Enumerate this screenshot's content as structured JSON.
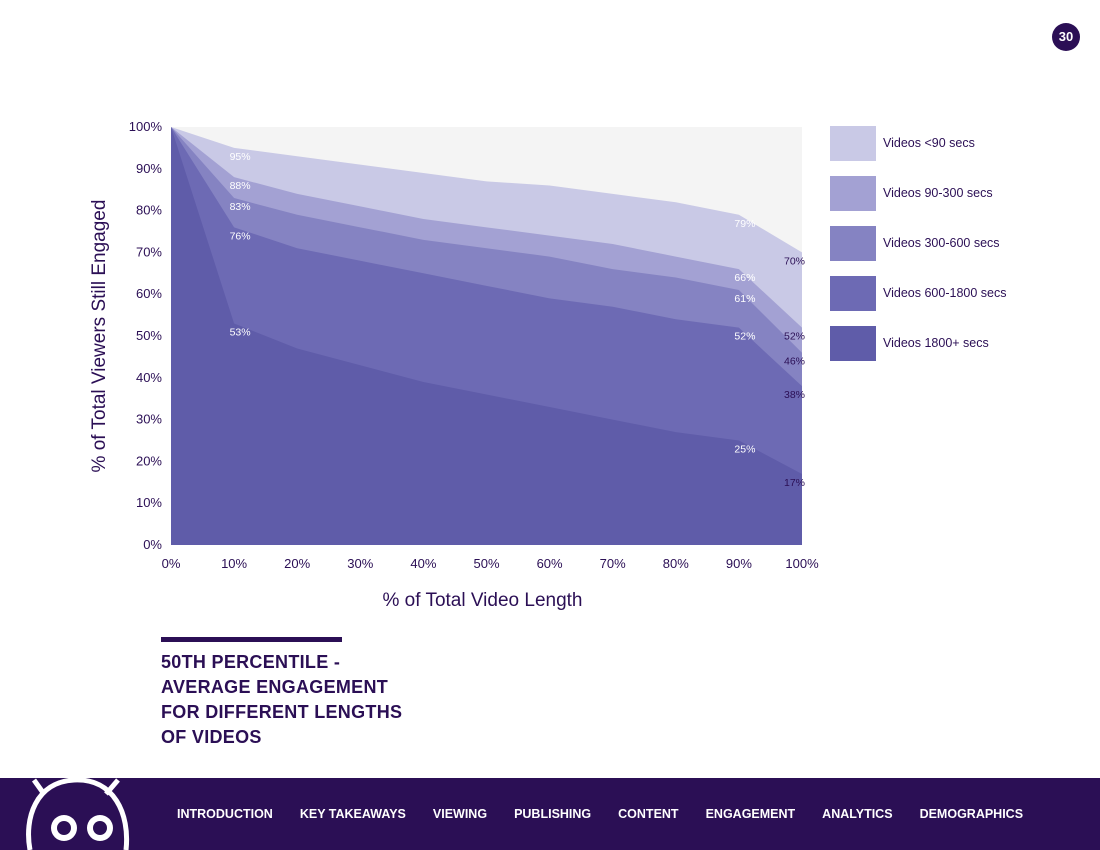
{
  "page_number": "30",
  "chart_data": {
    "type": "area",
    "x": [
      0,
      10,
      20,
      30,
      40,
      50,
      60,
      70,
      80,
      90,
      100
    ],
    "x_tick_labels": [
      "0%",
      "10%",
      "20%",
      "30%",
      "40%",
      "50%",
      "60%",
      "70%",
      "80%",
      "90%",
      "100%"
    ],
    "y_tick_labels": [
      "0%",
      "10%",
      "20%",
      "30%",
      "40%",
      "50%",
      "60%",
      "70%",
      "80%",
      "90%",
      "100%"
    ],
    "ylim": [
      0,
      100
    ],
    "xlabel": "% of Total Video Length",
    "ylabel": "% of Total Viewers Still Engaged",
    "series": [
      {
        "name": "Videos <90 secs",
        "color": "#c9c9e6",
        "values": [
          100,
          95,
          93,
          91,
          89,
          87,
          86,
          84,
          82,
          79,
          70
        ]
      },
      {
        "name": "Videos 90-300 secs",
        "color": "#a3a1d3",
        "values": [
          100,
          88,
          84,
          81,
          78,
          76,
          74,
          72,
          69,
          66,
          52
        ]
      },
      {
        "name": "Videos 300-600 secs",
        "color": "#8583c2",
        "values": [
          100,
          83,
          79,
          76,
          73,
          71,
          69,
          66,
          64,
          61,
          46
        ]
      },
      {
        "name": "Videos 600-1800 secs",
        "color": "#6d6ab4",
        "values": [
          100,
          76,
          71,
          68,
          65,
          62,
          59,
          57,
          54,
          52,
          38
        ]
      },
      {
        "name": "Videos 1800+ secs",
        "color": "#5f5ca9",
        "values": [
          100,
          53,
          47,
          43,
          39,
          36,
          33,
          30,
          27,
          25,
          17
        ]
      }
    ],
    "data_labels": [
      {
        "text": "95%",
        "x": 10,
        "y": 95
      },
      {
        "text": "88%",
        "x": 10,
        "y": 88
      },
      {
        "text": "83%",
        "x": 10,
        "y": 83
      },
      {
        "text": "76%",
        "x": 10,
        "y": 76
      },
      {
        "text": "53%",
        "x": 10,
        "y": 53
      },
      {
        "text": "79%",
        "x": 90,
        "y": 79
      },
      {
        "text": "66%",
        "x": 90,
        "y": 66
      },
      {
        "text": "61%",
        "x": 90,
        "y": 61
      },
      {
        "text": "52%",
        "x": 90,
        "y": 52
      },
      {
        "text": "25%",
        "x": 90,
        "y": 25
      },
      {
        "text": "70%",
        "x": 100,
        "y": 70
      },
      {
        "text": "52%",
        "x": 100,
        "y": 52
      },
      {
        "text": "46%",
        "x": 100,
        "y": 46
      },
      {
        "text": "38%",
        "x": 100,
        "y": 38
      },
      {
        "text": "17%",
        "x": 100,
        "y": 17
      }
    ]
  },
  "caption": "50TH PERCENTILE -\nAVERAGE ENGAGEMENT\nFOR DIFFERENT LENGTHS\nOF VIDEOS",
  "footer": {
    "nav": [
      "INTRODUCTION",
      "KEY TAKEAWAYS",
      "VIEWING",
      "PUBLISHING",
      "CONTENT",
      "ENGAGEMENT",
      "ANALYTICS",
      "DEMOGRAPHICS"
    ]
  }
}
